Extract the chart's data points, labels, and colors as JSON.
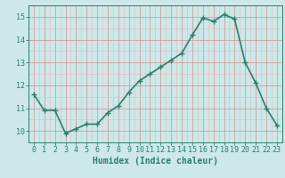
{
  "x": [
    0,
    1,
    2,
    3,
    4,
    5,
    6,
    7,
    8,
    9,
    10,
    11,
    12,
    13,
    14,
    15,
    16,
    17,
    18,
    19,
    20,
    21,
    22,
    23
  ],
  "y": [
    11.6,
    10.9,
    10.9,
    9.9,
    10.1,
    10.3,
    10.3,
    10.8,
    11.1,
    11.7,
    12.2,
    12.5,
    12.8,
    13.1,
    13.4,
    14.2,
    14.95,
    14.8,
    15.1,
    14.9,
    13.0,
    12.1,
    11.0,
    10.25
  ],
  "line_color": "#2e7d6e",
  "marker": "+",
  "marker_size": 4,
  "bg_color": "#cce8e8",
  "grid_color_minor": "#e8b8b8",
  "grid_color_major": "#d09090",
  "ylabel_ticks": [
    10,
    11,
    12,
    13,
    14,
    15
  ],
  "ylim": [
    9.5,
    15.5
  ],
  "xlim": [
    -0.5,
    23.5
  ],
  "xlabel": "Humidex (Indice chaleur)",
  "xlabel_fontsize": 7,
  "tick_fontsize": 6,
  "line_width": 1.2
}
